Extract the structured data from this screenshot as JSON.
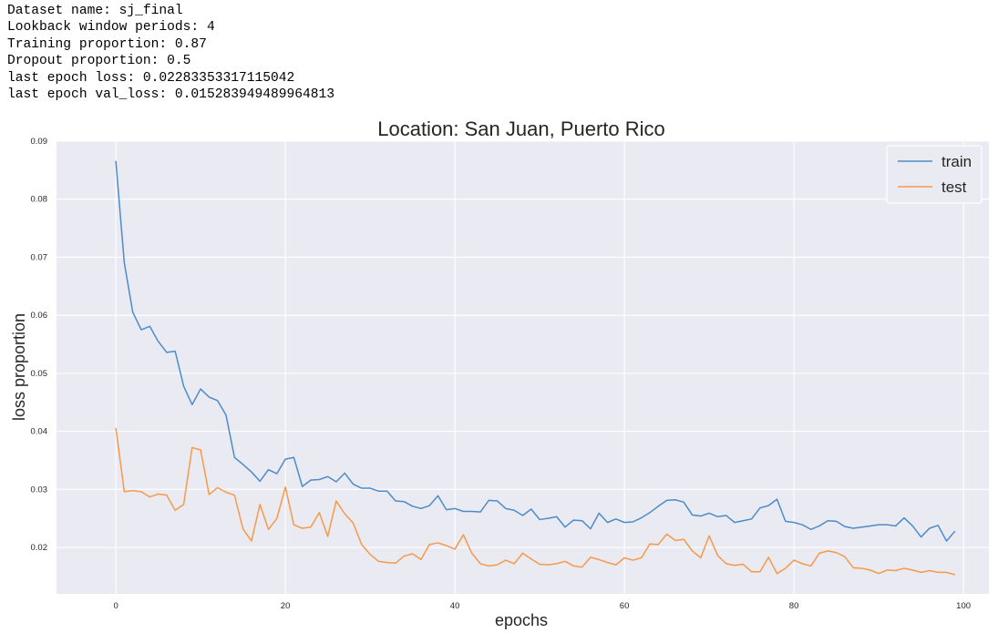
{
  "info_lines": [
    "Dataset name: sj_final",
    "Lookback window periods: 4",
    "Training proportion: 0.87",
    "Dropout proportion: 0.5",
    "last epoch loss: 0.02283353317115042",
    "last epoch val_loss: 0.015283949489964813"
  ],
  "chart_data": {
    "type": "line",
    "title": "Location: San Juan, Puerto Rico",
    "xlabel": "epochs",
    "ylabel": "loss proportion",
    "xlim": [
      -7,
      103
    ],
    "ylim": [
      0.012,
      0.09
    ],
    "xticks": [
      0,
      20,
      40,
      60,
      80,
      100
    ],
    "yticks": [
      0.02,
      0.03,
      0.04,
      0.05,
      0.06,
      0.07,
      0.08,
      0.09
    ],
    "grid": true,
    "legend": "top-right",
    "x": [
      0,
      1,
      2,
      3,
      4,
      5,
      6,
      7,
      8,
      9,
      10,
      11,
      12,
      13,
      14,
      15,
      16,
      17,
      18,
      19,
      20,
      21,
      22,
      23,
      24,
      25,
      26,
      27,
      28,
      29,
      30,
      31,
      32,
      33,
      34,
      35,
      36,
      37,
      38,
      39,
      40,
      41,
      42,
      43,
      44,
      45,
      46,
      47,
      48,
      49,
      50,
      51,
      52,
      53,
      54,
      55,
      56,
      57,
      58,
      59,
      60,
      61,
      62,
      63,
      64,
      65,
      66,
      67,
      68,
      69,
      70,
      71,
      72,
      73,
      74,
      75,
      76,
      77,
      78,
      79,
      80,
      81,
      82,
      83,
      84,
      85,
      86,
      87,
      88,
      89,
      90,
      91,
      92,
      93,
      94,
      95,
      96,
      97,
      98,
      99
    ],
    "series": [
      {
        "name": "train",
        "color": "#4c8cc8",
        "values": [
          0.0866,
          0.069,
          0.0605,
          0.0575,
          0.0581,
          0.0555,
          0.0536,
          0.0538,
          0.0478,
          0.0446,
          0.0473,
          0.0459,
          0.0453,
          0.0428,
          0.0355,
          0.0343,
          0.033,
          0.0314,
          0.0334,
          0.0327,
          0.0352,
          0.0355,
          0.0305,
          0.0316,
          0.0317,
          0.0322,
          0.0313,
          0.0328,
          0.0309,
          0.0302,
          0.0302,
          0.0297,
          0.0297,
          0.028,
          0.0279,
          0.0271,
          0.0267,
          0.0272,
          0.0289,
          0.0265,
          0.0267,
          0.0262,
          0.0262,
          0.0261,
          0.0281,
          0.028,
          0.0267,
          0.0264,
          0.0255,
          0.0266,
          0.0248,
          0.025,
          0.0253,
          0.0235,
          0.0247,
          0.0246,
          0.0232,
          0.0259,
          0.0243,
          0.0249,
          0.0243,
          0.0244,
          0.0251,
          0.026,
          0.0271,
          0.0281,
          0.0282,
          0.0278,
          0.0256,
          0.0254,
          0.0259,
          0.0253,
          0.0255,
          0.0243,
          0.0246,
          0.0249,
          0.0268,
          0.0272,
          0.0283,
          0.0245,
          0.0243,
          0.0239,
          0.0231,
          0.0237,
          0.0246,
          0.0245,
          0.0236,
          0.0233,
          0.0235,
          0.0237,
          0.0239,
          0.0239,
          0.0237,
          0.0251,
          0.0237,
          0.0218,
          0.0233,
          0.0238,
          0.0211,
          0.0228
        ]
      },
      {
        "name": "test",
        "color": "#f59a4a",
        "values": [
          0.0406,
          0.0296,
          0.0298,
          0.0296,
          0.0287,
          0.0292,
          0.029,
          0.0264,
          0.0274,
          0.0372,
          0.0368,
          0.0291,
          0.0303,
          0.0295,
          0.029,
          0.0232,
          0.0211,
          0.0274,
          0.0231,
          0.025,
          0.0304,
          0.0239,
          0.0233,
          0.0235,
          0.026,
          0.0219,
          0.028,
          0.0258,
          0.0242,
          0.0205,
          0.0188,
          0.0176,
          0.0174,
          0.0173,
          0.0185,
          0.0189,
          0.0179,
          0.0205,
          0.0208,
          0.0203,
          0.0197,
          0.0222,
          0.019,
          0.0172,
          0.0168,
          0.017,
          0.0178,
          0.0172,
          0.019,
          0.018,
          0.0171,
          0.017,
          0.0172,
          0.0176,
          0.0168,
          0.0166,
          0.0183,
          0.0179,
          0.0174,
          0.017,
          0.0182,
          0.0178,
          0.0182,
          0.0206,
          0.0205,
          0.0223,
          0.0212,
          0.0214,
          0.0194,
          0.0182,
          0.022,
          0.0186,
          0.0172,
          0.0169,
          0.0171,
          0.0158,
          0.0158,
          0.0183,
          0.0155,
          0.0164,
          0.0178,
          0.0172,
          0.0168,
          0.019,
          0.0194,
          0.0191,
          0.0184,
          0.0165,
          0.0164,
          0.0161,
          0.0155,
          0.0161,
          0.016,
          0.0164,
          0.0161,
          0.0157,
          0.016,
          0.0157,
          0.0157,
          0.0153
        ]
      }
    ]
  }
}
